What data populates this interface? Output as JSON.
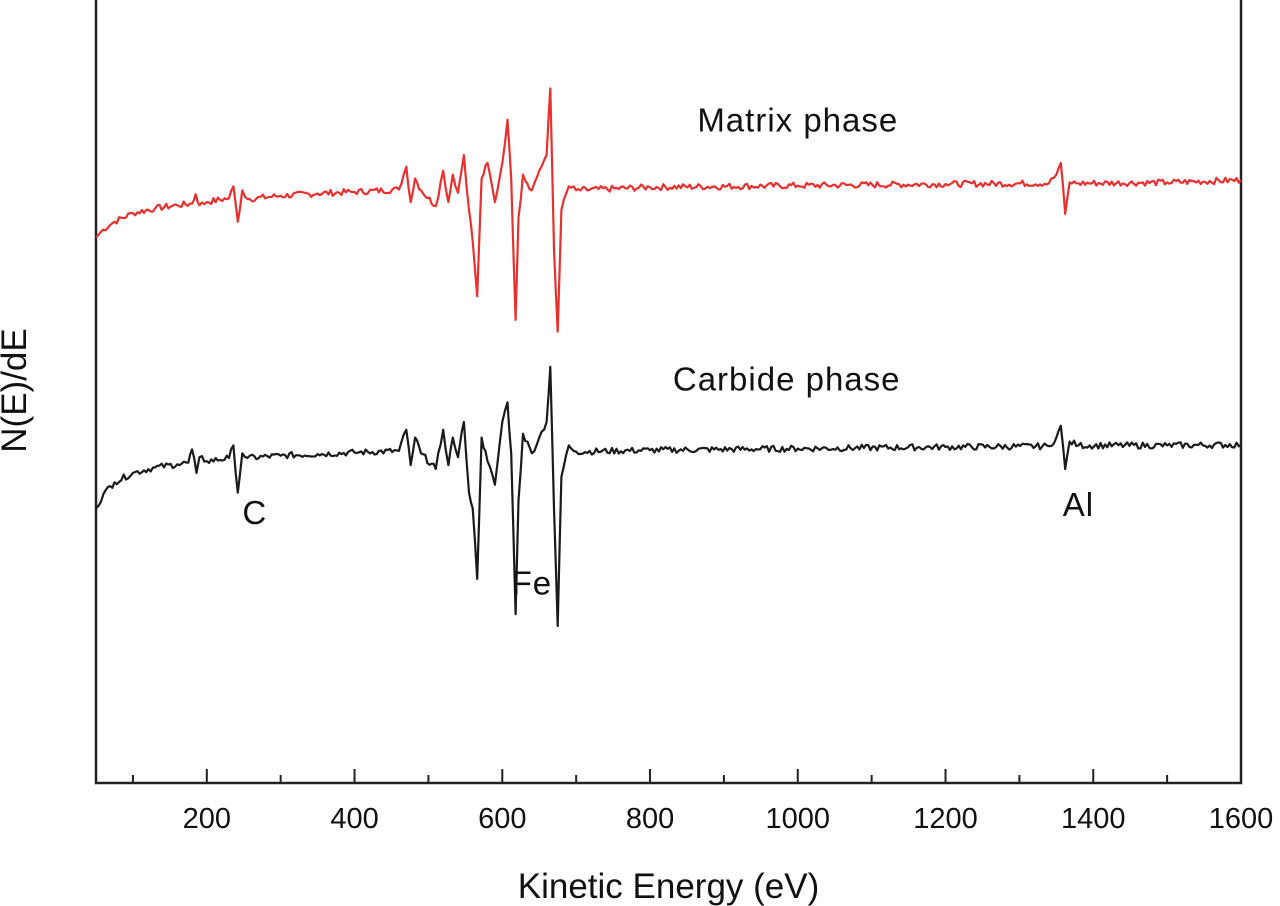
{
  "chart_data": {
    "type": "line",
    "title": "",
    "xlabel": "Kinetic Energy (eV)",
    "ylabel": "N(E)/dE",
    "xlim": [
      50,
      1600
    ],
    "ylim": [
      0,
      100
    ],
    "grid": false,
    "legend": "none",
    "x_ticks": [
      200,
      400,
      600,
      800,
      1000,
      1200,
      1400,
      1600
    ],
    "x_tick_labels": [
      "200",
      "400",
      "600",
      "800",
      "1000",
      "1200",
      "1400",
      "1600"
    ],
    "x_minor_ticks": [
      100,
      300,
      500,
      700,
      900,
      1100,
      1300,
      1500
    ],
    "series": [
      {
        "color": "#e8312f",
        "x": [
          50,
          60,
          75,
          100,
          130,
          160,
          180,
          185,
          190,
          200,
          230,
          236,
          242,
          248,
          255,
          300,
          350,
          400,
          460,
          470,
          476,
          482,
          490,
          510,
          520,
          527,
          533,
          540,
          548,
          555,
          560,
          566,
          572,
          580,
          590,
          600,
          607,
          612,
          618,
          622,
          628,
          640,
          650,
          660,
          665,
          670,
          675,
          680,
          690,
          700,
          800,
          1000,
          1200,
          1340,
          1350,
          1356,
          1362,
          1368,
          1380,
          1500,
          1600
        ],
        "y": [
          69.5,
          70.5,
          71.5,
          72.6,
          73.2,
          73.6,
          73.8,
          75.0,
          73.6,
          74.0,
          74.5,
          76.0,
          71.5,
          75.5,
          74.4,
          74.8,
          75.1,
          75.3,
          75.6,
          78.5,
          74.0,
          77.0,
          75.5,
          73.5,
          78.0,
          74.0,
          77.5,
          75.2,
          80.0,
          73.0,
          69.0,
          62.0,
          77.0,
          79.0,
          74.0,
          79.0,
          84.5,
          77.0,
          59.0,
          72.0,
          77.5,
          75.5,
          78.0,
          80.0,
          88.5,
          68.0,
          57.5,
          73.0,
          76.0,
          75.5,
          75.9,
          76.1,
          76.3,
          76.4,
          77.5,
          79.0,
          72.5,
          76.5,
          76.4,
          76.5,
          76.8
        ]
      },
      {
        "color": "#1a1a1a",
        "x": [
          50,
          60,
          75,
          100,
          130,
          160,
          175,
          180,
          186,
          190,
          200,
          230,
          236,
          242,
          248,
          255,
          300,
          350,
          400,
          460,
          470,
          476,
          482,
          490,
          510,
          520,
          527,
          533,
          540,
          548,
          555,
          560,
          566,
          572,
          580,
          590,
          600,
          607,
          612,
          618,
          622,
          628,
          640,
          650,
          660,
          665,
          670,
          675,
          680,
          690,
          700,
          800,
          1000,
          1200,
          1340,
          1350,
          1356,
          1362,
          1368,
          1380,
          1500,
          1600
        ],
        "y": [
          35.0,
          36.8,
          38.3,
          39.5,
          40.2,
          40.6,
          40.8,
          42.5,
          39.5,
          41.5,
          41.0,
          41.4,
          43.0,
          37.0,
          42.0,
          41.4,
          41.7,
          41.9,
          42.1,
          42.3,
          45.0,
          40.5,
          44.0,
          42.0,
          40.0,
          45.0,
          40.5,
          44.0,
          41.5,
          46.0,
          37.0,
          35.0,
          26.0,
          44.0,
          41.0,
          38.0,
          46.0,
          48.5,
          42.0,
          21.5,
          36.0,
          44.5,
          42.0,
          44.0,
          46.0,
          53.0,
          35.0,
          20.0,
          39.0,
          43.0,
          42.2,
          42.4,
          42.6,
          42.8,
          42.9,
          44.0,
          45.5,
          40.0,
          43.5,
          43.0,
          43.0,
          43.1
        ]
      }
    ],
    "annotations": [
      {
        "text": "Matrix phase",
        "x": 1000,
        "y": 83
      },
      {
        "text": "Carbide phase",
        "x": 985,
        "y": 50
      },
      {
        "text": "C",
        "x": 265,
        "y": 33
      },
      {
        "text": "Fe",
        "x": 640,
        "y": 24
      },
      {
        "text": "Al",
        "x": 1380,
        "y": 34
      }
    ]
  }
}
